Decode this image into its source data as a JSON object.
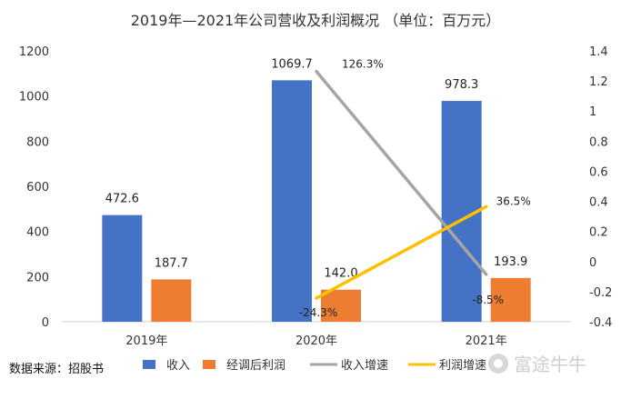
{
  "chart_data": {
    "type": "bar",
    "title": "2019年—2021年公司营收及利润概况 （单位：百万元）",
    "categories": [
      "2019年",
      "2020年",
      "2021年"
    ],
    "series": [
      {
        "name": "收入",
        "type": "bar",
        "axis": "left",
        "color": "#4472C4",
        "values": [
          472.6,
          1069.7,
          978.3
        ],
        "labels": [
          "472.6",
          "1069.7",
          "978.3"
        ]
      },
      {
        "name": "经调后利润",
        "type": "bar",
        "axis": "left",
        "color": "#ED7D31",
        "values": [
          187.7,
          142.0,
          193.9
        ],
        "labels": [
          "187.7",
          "142.0",
          "193.9"
        ]
      },
      {
        "name": "收入增速",
        "type": "line",
        "axis": "right",
        "color": "#A5A5A5",
        "values": [
          null,
          1.263,
          -0.085
        ],
        "labels": [
          "",
          "126.3%",
          "-8.5%"
        ]
      },
      {
        "name": "利润增速",
        "type": "line",
        "axis": "right",
        "color": "#FFC000",
        "values": [
          null,
          -0.243,
          0.365
        ],
        "labels": [
          "",
          "-24.3%",
          "36.5%"
        ]
      }
    ],
    "left_axis": {
      "min": 0,
      "max": 1200,
      "ticks": [
        "0",
        "200",
        "400",
        "600",
        "800",
        "1000",
        "1200"
      ]
    },
    "right_axis": {
      "min": -0.4,
      "max": 1.4,
      "ticks": [
        "-0.4",
        "-0.2",
        "0",
        "0.2",
        "0.4",
        "0.6",
        "0.8",
        "1",
        "1.2",
        "1.4"
      ]
    },
    "grid": false,
    "legend_position": "bottom"
  },
  "source_note": "数据来源：招股书",
  "watermark": {
    "text": "富途牛牛"
  }
}
